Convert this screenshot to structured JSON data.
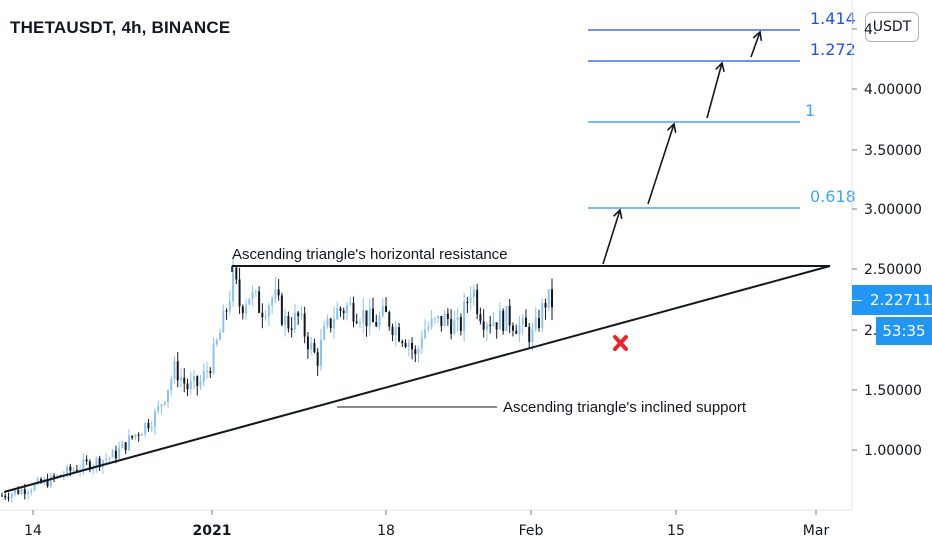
{
  "header": {
    "title": "THETAUSDT, 4h, BINANCE"
  },
  "currency_button": {
    "label": "USDT"
  },
  "price_badge": {
    "value": "2.22711",
    "countdown": "53:35"
  },
  "colors": {
    "candle": "#131722",
    "candle_up": "#8cc2ee",
    "fib_line": "#2196f3",
    "fib_text_dark": "#1e53e5",
    "fib_text_light": "#42a5f5",
    "badge": "#2196f3",
    "annotation": "#131722",
    "cross": "#e5292b"
  },
  "icons": {
    "invalidation": "cross-mark-icon"
  },
  "chart_data": {
    "type": "candlestick",
    "symbol": "THETAUSDT",
    "timeframe": "4h",
    "exchange": "BINANCE",
    "x_ticks": [
      "14",
      "2021",
      "18",
      "Feb",
      "15",
      "Mar"
    ],
    "y_ticks": [
      "1.00000",
      "1.50000",
      "2.",
      "2.50000",
      "3.00000",
      "3.50000",
      "4.00000",
      "4."
    ],
    "ylim": [
      0.5,
      4.6
    ],
    "last_price": 2.22711,
    "fib_levels": [
      {
        "label": "0.618",
        "price": 3.0
      },
      {
        "label": "1",
        "price": 3.72
      },
      {
        "label": "1.272",
        "price": 4.23
      },
      {
        "label": "1.414",
        "price": 4.5
      }
    ],
    "annotations": [
      "Ascending triangle's horizontal resistance",
      "Ascending triangle's inclined support"
    ],
    "resistance_price": 2.5,
    "price_path": [
      {
        "t": 0.0,
        "p": 0.62
      },
      {
        "t": 4.0,
        "p": 0.68
      },
      {
        "t": 8.0,
        "p": 0.75
      },
      {
        "t": 12.0,
        "p": 0.85
      },
      {
        "t": 15.0,
        "p": 0.9
      },
      {
        "t": 18.0,
        "p": 0.95
      },
      {
        "t": 20.0,
        "p": 1.05
      },
      {
        "t": 23.0,
        "p": 1.2
      },
      {
        "t": 25.0,
        "p": 1.3
      },
      {
        "t": 27.0,
        "p": 1.55
      },
      {
        "t": 28.0,
        "p": 1.68
      },
      {
        "t": 30.0,
        "p": 1.52
      },
      {
        "t": 32.0,
        "p": 1.55
      },
      {
        "t": 34.0,
        "p": 1.75
      },
      {
        "t": 36.0,
        "p": 2.1
      },
      {
        "t": 37.5,
        "p": 2.45
      },
      {
        "t": 38.5,
        "p": 2.2
      },
      {
        "t": 40.0,
        "p": 2.3
      },
      {
        "t": 42.0,
        "p": 2.18
      },
      {
        "t": 44.0,
        "p": 2.28
      },
      {
        "t": 46.0,
        "p": 2.05
      },
      {
        "t": 48.0,
        "p": 2.1
      },
      {
        "t": 50.0,
        "p": 1.85
      },
      {
        "t": 51.0,
        "p": 1.75
      },
      {
        "t": 52.0,
        "p": 1.95
      },
      {
        "t": 54.0,
        "p": 2.15
      },
      {
        "t": 56.0,
        "p": 2.2
      },
      {
        "t": 58.0,
        "p": 2.15
      },
      {
        "t": 60.0,
        "p": 2.05
      },
      {
        "t": 62.0,
        "p": 2.12
      },
      {
        "t": 64.0,
        "p": 2.0
      },
      {
        "t": 66.0,
        "p": 1.9
      },
      {
        "t": 67.0,
        "p": 1.75
      },
      {
        "t": 68.0,
        "p": 2.0
      },
      {
        "t": 70.0,
        "p": 2.05
      },
      {
        "t": 72.0,
        "p": 2.1
      },
      {
        "t": 74.0,
        "p": 2.0
      },
      {
        "t": 76.0,
        "p": 2.38
      },
      {
        "t": 77.0,
        "p": 2.2
      },
      {
        "t": 78.0,
        "p": 2.1
      },
      {
        "t": 80.0,
        "p": 2.08
      },
      {
        "t": 82.0,
        "p": 2.1
      },
      {
        "t": 84.0,
        "p": 2.02
      },
      {
        "t": 86.0,
        "p": 1.95
      },
      {
        "t": 87.0,
        "p": 2.1
      },
      {
        "t": 88.0,
        "p": 2.25
      },
      {
        "t": 89.0,
        "p": 2.23
      }
    ]
  }
}
